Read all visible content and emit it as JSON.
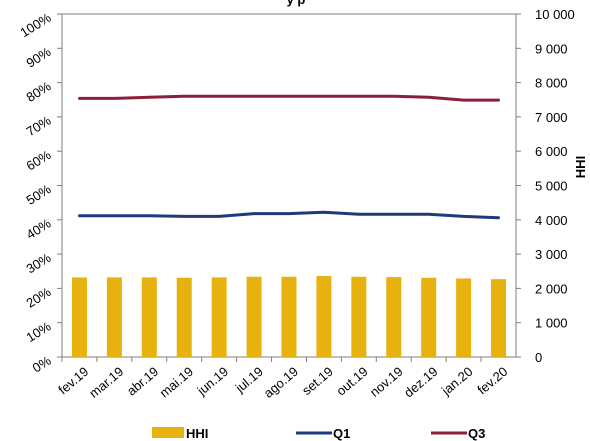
{
  "chart_data": {
    "type": "bar",
    "title_fragment": "y p",
    "categories": [
      "fev.19",
      "mar.19",
      "abr.19",
      "mai.19",
      "jun.19",
      "jul.19",
      "ago.19",
      "set.19",
      "out.19",
      "nov.19",
      "dez.19",
      "jan.20",
      "fev.20"
    ],
    "bars": {
      "name": "HHI",
      "axis": "right",
      "color": "#E8B20E",
      "values": [
        2320,
        2320,
        2320,
        2310,
        2320,
        2340,
        2340,
        2360,
        2340,
        2330,
        2310,
        2290,
        2270
      ]
    },
    "lines": [
      {
        "name": "Q1",
        "axis": "left",
        "color": "#1F3A7A",
        "values": [
          41.2,
          41.2,
          41.2,
          41.0,
          41.0,
          41.8,
          41.8,
          42.2,
          41.6,
          41.6,
          41.6,
          41.0,
          40.6
        ]
      },
      {
        "name": "Q3",
        "axis": "left",
        "color": "#8B1F3A",
        "values": [
          75.4,
          75.4,
          75.7,
          76.0,
          76.0,
          76.0,
          76.0,
          76.0,
          76.0,
          76.0,
          75.7,
          74.9,
          74.9
        ]
      }
    ],
    "y_left": {
      "min": 0,
      "max": 100,
      "ticks": [
        "0%",
        "10%",
        "20%",
        "30%",
        "40%",
        "50%",
        "60%",
        "70%",
        "80%",
        "90%",
        "100%"
      ]
    },
    "y_right": {
      "label": "HHI",
      "min": 0,
      "max": 10000,
      "ticks": [
        "0",
        "1 000",
        "2 000",
        "3 000",
        "4 000",
        "5 000",
        "6 000",
        "7 000",
        "8 000",
        "9 000",
        "10 000"
      ]
    },
    "grid": "none",
    "legend": {
      "position": "bottom",
      "items": [
        "HHI",
        "Q1",
        "Q3"
      ]
    }
  }
}
